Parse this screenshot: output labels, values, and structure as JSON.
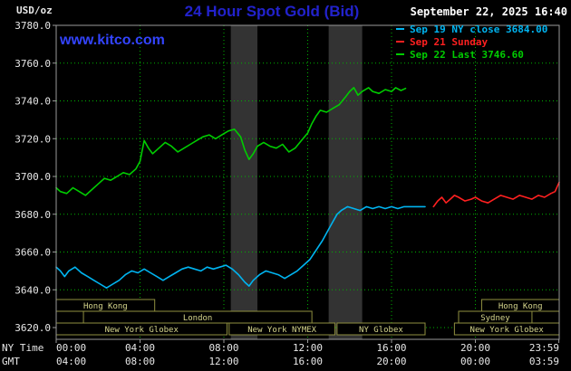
{
  "header": {
    "unit": "USD/oz",
    "title": "24 Hour Spot Gold (Bid)",
    "datetime": "September 22, 2025 16:40",
    "watermark": "www.kitco.com"
  },
  "legend": [
    {
      "label": "Sep 19 NY close 3684.00",
      "color": "#00b4f0"
    },
    {
      "label": "Sep 21 Sunday",
      "color": "#ff2020"
    },
    {
      "label": "Sep 22 Last 3746.60",
      "color": "#00cc00"
    }
  ],
  "chart_data": {
    "type": "line",
    "title": "24 Hour Spot Gold (Bid)",
    "ylabel": "USD/oz",
    "ylim": [
      3620,
      3780
    ],
    "xlim_hours": [
      0,
      24
    ],
    "grid_color": "#00b400",
    "y_ticks": [
      {
        "value": 3620,
        "label": "3620.0"
      },
      {
        "value": 3640,
        "label": "3640.0"
      },
      {
        "value": 3660,
        "label": "3660.0"
      },
      {
        "value": 3680,
        "label": "3680.0"
      },
      {
        "value": 3700,
        "label": "3700.0"
      },
      {
        "value": 3720,
        "label": "3720.0"
      },
      {
        "value": 3740,
        "label": "3740.0"
      },
      {
        "value": 3760,
        "label": "3760.0"
      },
      {
        "value": 3780,
        "label": "3780.0"
      }
    ],
    "x_ticks": [
      {
        "hour": 0,
        "ny": "00:00",
        "gmt": "04:00"
      },
      {
        "hour": 4,
        "ny": "04:00",
        "gmt": "08:00"
      },
      {
        "hour": 8,
        "ny": "08:00",
        "gmt": "12:00"
      },
      {
        "hour": 12,
        "ny": "12:00",
        "gmt": "16:00"
      },
      {
        "hour": 16,
        "ny": "16:00",
        "gmt": "20:00"
      },
      {
        "hour": 20,
        "ny": "20:00",
        "gmt": "00:00"
      },
      {
        "hour": 23.983,
        "ny": "23:59",
        "gmt": "03:59"
      }
    ],
    "x_axis_row_labels": {
      "ny": "NY Time",
      "gmt": "GMT"
    },
    "bands": [
      {
        "start": 8.33,
        "end": 9.6
      },
      {
        "start": 13.0,
        "end": 14.6
      }
    ],
    "series": [
      {
        "name": "Sep 19 NY close",
        "color": "#00b4f0",
        "points": [
          [
            0,
            3652
          ],
          [
            0.2,
            3650
          ],
          [
            0.4,
            3647
          ],
          [
            0.6,
            3650
          ],
          [
            0.9,
            3652
          ],
          [
            1.2,
            3649
          ],
          [
            1.5,
            3647
          ],
          [
            1.8,
            3645
          ],
          [
            2.1,
            3643
          ],
          [
            2.4,
            3641
          ],
          [
            2.7,
            3643
          ],
          [
            3.0,
            3645
          ],
          [
            3.3,
            3648
          ],
          [
            3.6,
            3650
          ],
          [
            3.9,
            3649
          ],
          [
            4.2,
            3651
          ],
          [
            4.5,
            3649
          ],
          [
            4.8,
            3647
          ],
          [
            5.1,
            3645
          ],
          [
            5.4,
            3647
          ],
          [
            5.7,
            3649
          ],
          [
            6.0,
            3651
          ],
          [
            6.3,
            3652
          ],
          [
            6.6,
            3651
          ],
          [
            6.9,
            3650
          ],
          [
            7.2,
            3652
          ],
          [
            7.5,
            3651
          ],
          [
            7.8,
            3652
          ],
          [
            8.1,
            3653
          ],
          [
            8.4,
            3651
          ],
          [
            8.7,
            3648
          ],
          [
            9.0,
            3644
          ],
          [
            9.2,
            3642
          ],
          [
            9.4,
            3645
          ],
          [
            9.7,
            3648
          ],
          [
            10.0,
            3650
          ],
          [
            10.3,
            3649
          ],
          [
            10.6,
            3648
          ],
          [
            10.9,
            3646
          ],
          [
            11.2,
            3648
          ],
          [
            11.5,
            3650
          ],
          [
            11.8,
            3653
          ],
          [
            12.1,
            3656
          ],
          [
            12.4,
            3661
          ],
          [
            12.7,
            3666
          ],
          [
            13.0,
            3672
          ],
          [
            13.2,
            3676
          ],
          [
            13.4,
            3680
          ],
          [
            13.6,
            3682
          ],
          [
            13.9,
            3684
          ],
          [
            14.2,
            3683
          ],
          [
            14.5,
            3682
          ],
          [
            14.8,
            3684
          ],
          [
            15.1,
            3683
          ],
          [
            15.4,
            3684
          ],
          [
            15.7,
            3683
          ],
          [
            16.0,
            3684
          ],
          [
            16.3,
            3683
          ],
          [
            16.6,
            3684
          ],
          [
            17.0,
            3684
          ],
          [
            17.6,
            3684
          ]
        ]
      },
      {
        "name": "Sep 21 Sunday",
        "color": "#ff2020",
        "points": [
          [
            18.0,
            3684
          ],
          [
            18.2,
            3687
          ],
          [
            18.4,
            3689
          ],
          [
            18.6,
            3686
          ],
          [
            18.8,
            3688
          ],
          [
            19.0,
            3690
          ],
          [
            19.2,
            3689
          ],
          [
            19.5,
            3687
          ],
          [
            19.8,
            3688
          ],
          [
            20.0,
            3689
          ],
          [
            20.3,
            3687
          ],
          [
            20.6,
            3686
          ],
          [
            20.9,
            3688
          ],
          [
            21.2,
            3690
          ],
          [
            21.5,
            3689
          ],
          [
            21.8,
            3688
          ],
          [
            22.1,
            3690
          ],
          [
            22.4,
            3689
          ],
          [
            22.7,
            3688
          ],
          [
            23.0,
            3690
          ],
          [
            23.3,
            3689
          ],
          [
            23.6,
            3691
          ],
          [
            23.8,
            3692
          ],
          [
            24.0,
            3697
          ]
        ]
      },
      {
        "name": "Sep 22 Last",
        "color": "#00cc00",
        "points": [
          [
            0,
            3694
          ],
          [
            0.2,
            3692
          ],
          [
            0.5,
            3691
          ],
          [
            0.8,
            3694
          ],
          [
            1.1,
            3692
          ],
          [
            1.4,
            3690
          ],
          [
            1.7,
            3693
          ],
          [
            2.0,
            3696
          ],
          [
            2.3,
            3699
          ],
          [
            2.6,
            3698
          ],
          [
            2.9,
            3700
          ],
          [
            3.2,
            3702
          ],
          [
            3.5,
            3701
          ],
          [
            3.8,
            3704
          ],
          [
            4.0,
            3708
          ],
          [
            4.2,
            3719
          ],
          [
            4.4,
            3715
          ],
          [
            4.6,
            3712
          ],
          [
            4.9,
            3715
          ],
          [
            5.2,
            3718
          ],
          [
            5.5,
            3716
          ],
          [
            5.8,
            3713
          ],
          [
            6.1,
            3715
          ],
          [
            6.4,
            3717
          ],
          [
            6.7,
            3719
          ],
          [
            7.0,
            3721
          ],
          [
            7.3,
            3722
          ],
          [
            7.6,
            3720
          ],
          [
            7.9,
            3722
          ],
          [
            8.2,
            3724
          ],
          [
            8.5,
            3725
          ],
          [
            8.8,
            3721
          ],
          [
            9.0,
            3714
          ],
          [
            9.2,
            3709
          ],
          [
            9.4,
            3712
          ],
          [
            9.6,
            3716
          ],
          [
            9.9,
            3718
          ],
          [
            10.2,
            3716
          ],
          [
            10.5,
            3715
          ],
          [
            10.8,
            3717
          ],
          [
            11.1,
            3713
          ],
          [
            11.4,
            3715
          ],
          [
            11.7,
            3719
          ],
          [
            12.0,
            3723
          ],
          [
            12.2,
            3728
          ],
          [
            12.4,
            3732
          ],
          [
            12.6,
            3735
          ],
          [
            12.9,
            3734
          ],
          [
            13.2,
            3736
          ],
          [
            13.5,
            3738
          ],
          [
            13.8,
            3742
          ],
          [
            14.0,
            3745
          ],
          [
            14.2,
            3747
          ],
          [
            14.4,
            3743
          ],
          [
            14.6,
            3745
          ],
          [
            14.9,
            3747
          ],
          [
            15.1,
            3745
          ],
          [
            15.4,
            3744
          ],
          [
            15.7,
            3746
          ],
          [
            16.0,
            3745
          ],
          [
            16.2,
            3747
          ],
          [
            16.45,
            3745.5
          ],
          [
            16.67,
            3746.6
          ]
        ]
      }
    ],
    "sessions": [
      {
        "row": 0,
        "label": "Hong Kong",
        "start": 0,
        "end": 4.7
      },
      {
        "row": 0,
        "label": "Hong Kong",
        "start": 20.3,
        "end": 24
      },
      {
        "row": 1,
        "label": "London",
        "start": 1.3,
        "end": 12.2
      },
      {
        "row": 1,
        "label": "Sydney",
        "start": 19.2,
        "end": 22.7
      },
      {
        "row": 2,
        "label": "New York Globex",
        "start": 0,
        "end": 8.15
      },
      {
        "row": 2,
        "label": "New York NYMEX",
        "start": 8.25,
        "end": 13.3
      },
      {
        "row": 2,
        "label": "NY Globex",
        "start": 13.4,
        "end": 17.6
      },
      {
        "row": 2,
        "label": "New York Globex",
        "start": 19.0,
        "end": 24
      }
    ]
  }
}
